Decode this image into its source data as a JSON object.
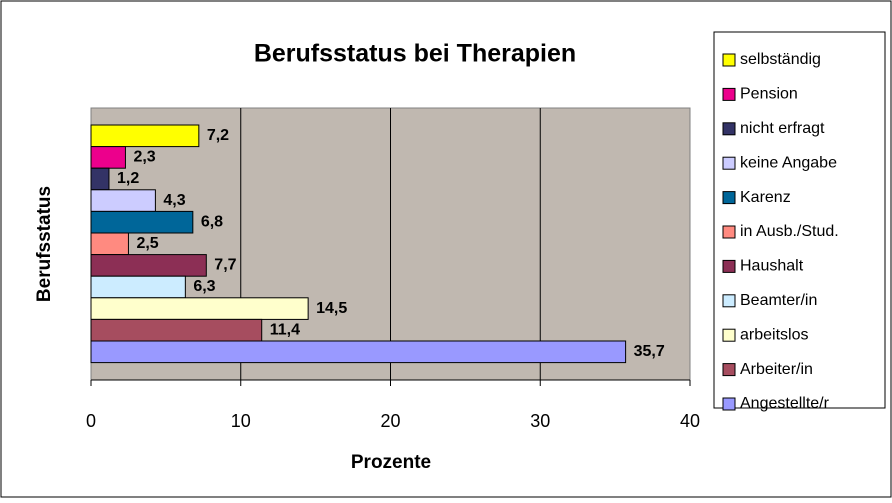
{
  "chart_data": {
    "type": "bar",
    "orientation": "horizontal",
    "title": "Berufsstatus bei Therapien",
    "x_label": "Prozente",
    "y_label": "Berufsstatus",
    "xlim": [
      0,
      40
    ],
    "xticks": [
      0,
      10,
      20,
      30,
      40
    ],
    "grid": true,
    "legend": "right",
    "series": [
      {
        "name": "selbständig",
        "color": "#ffff00",
        "values": [
          7.2
        ],
        "value_labels": [
          "7,2"
        ]
      },
      {
        "name": "Pension",
        "color": "#ec008c",
        "values": [
          2.3
        ],
        "value_labels": [
          "2,3"
        ]
      },
      {
        "name": "nicht erfragt",
        "color": "#333366",
        "values": [
          1.2
        ],
        "value_labels": [
          "1,2"
        ]
      },
      {
        "name": "keine Angabe",
        "color": "#ccccff",
        "values": [
          4.3
        ],
        "value_labels": [
          "4,3"
        ]
      },
      {
        "name": "Karenz",
        "color": "#006699",
        "values": [
          6.8
        ],
        "value_labels": [
          "6,8"
        ]
      },
      {
        "name": "in Ausb./Stud.",
        "color": "#ff8a80",
        "values": [
          2.5
        ],
        "value_labels": [
          "2,5"
        ]
      },
      {
        "name": "Haushalt",
        "color": "#8c2f55",
        "values": [
          7.7
        ],
        "value_labels": [
          "7,7"
        ]
      },
      {
        "name": "Beamter/in",
        "color": "#ccecff",
        "values": [
          6.3
        ],
        "value_labels": [
          "6,3"
        ]
      },
      {
        "name": "arbeitslos",
        "color": "#ffffcc",
        "values": [
          14.5
        ],
        "value_labels": [
          "14,5"
        ]
      },
      {
        "name": "Arbeiter/in",
        "color": "#a64d5f",
        "values": [
          11.4
        ],
        "value_labels": [
          "11,4"
        ]
      },
      {
        "name": "Angestellte/r",
        "color": "#9999ff",
        "values": [
          35.7
        ],
        "value_labels": [
          "35,7"
        ]
      }
    ]
  }
}
